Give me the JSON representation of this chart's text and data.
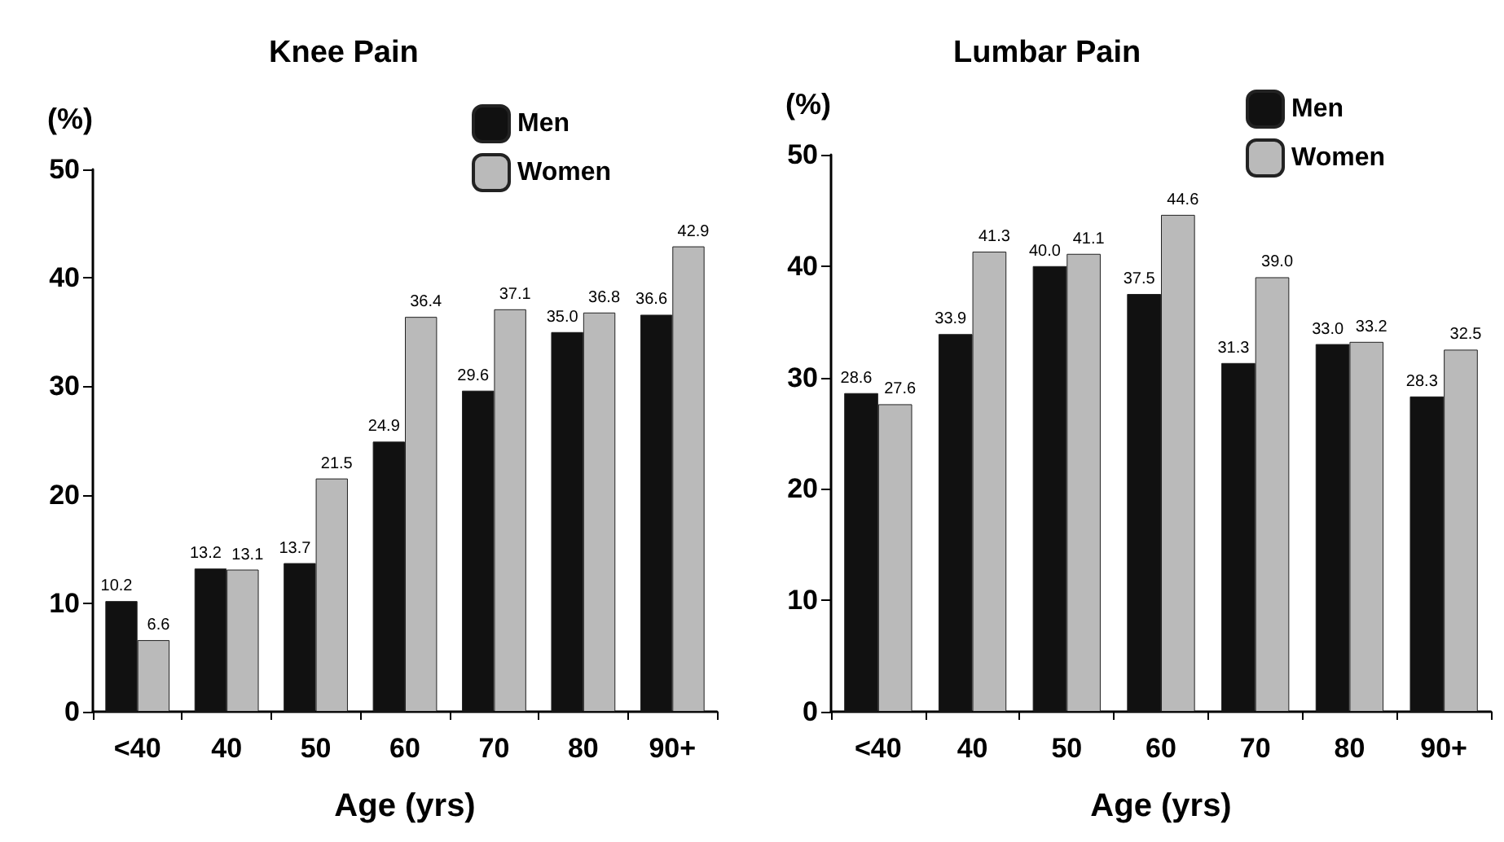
{
  "chart_data": [
    {
      "type": "bar",
      "title": "Knee Pain",
      "xlabel": "Age (yrs)",
      "ylabel": "(%)",
      "categories": [
        "<40",
        "40",
        "50",
        "60",
        "70",
        "80",
        "90+"
      ],
      "series": [
        {
          "name": "Men",
          "color": "#111111",
          "values": [
            10.2,
            13.2,
            13.7,
            24.9,
            29.6,
            35.0,
            36.6
          ],
          "value_labels": [
            "10.2",
            "13.2",
            "13.7",
            "24.9",
            "29.6",
            "35.0",
            "36.6"
          ]
        },
        {
          "name": "Women",
          "color": "#bababa",
          "values": [
            6.6,
            13.1,
            21.5,
            36.4,
            37.1,
            36.8,
            42.9
          ],
          "value_labels": [
            "6.6",
            "13.1",
            "21.5",
            "36.4",
            "37.1",
            "36.8",
            "42.9"
          ]
        }
      ],
      "ylim": [
        0,
        50
      ],
      "yticks": [
        0,
        10,
        20,
        30,
        40,
        50
      ],
      "legend": "top right",
      "grid": false
    },
    {
      "type": "bar",
      "title": "Lumbar Pain",
      "xlabel": "Age (yrs)",
      "ylabel": "(%)",
      "categories": [
        "<40",
        "40",
        "50",
        "60",
        "70",
        "80",
        "90+"
      ],
      "series": [
        {
          "name": "Men",
          "color": "#111111",
          "values": [
            28.6,
            33.9,
            40.0,
            37.5,
            31.3,
            33.0,
            28.3
          ],
          "value_labels": [
            "28.6",
            "33.9",
            "40.0",
            "37.5",
            "31.3",
            "33.0",
            "28.3"
          ]
        },
        {
          "name": "Women",
          "color": "#bababa",
          "values": [
            27.6,
            41.3,
            41.1,
            44.6,
            39.0,
            33.2,
            32.5
          ],
          "value_labels": [
            "27.6",
            "41.3",
            "41.1",
            "44.6",
            "39.0",
            "33.2",
            "32.5"
          ]
        }
      ],
      "ylim": [
        0,
        50
      ],
      "yticks": [
        0,
        10,
        20,
        30,
        40,
        50
      ],
      "legend": "top right",
      "grid": false
    }
  ]
}
